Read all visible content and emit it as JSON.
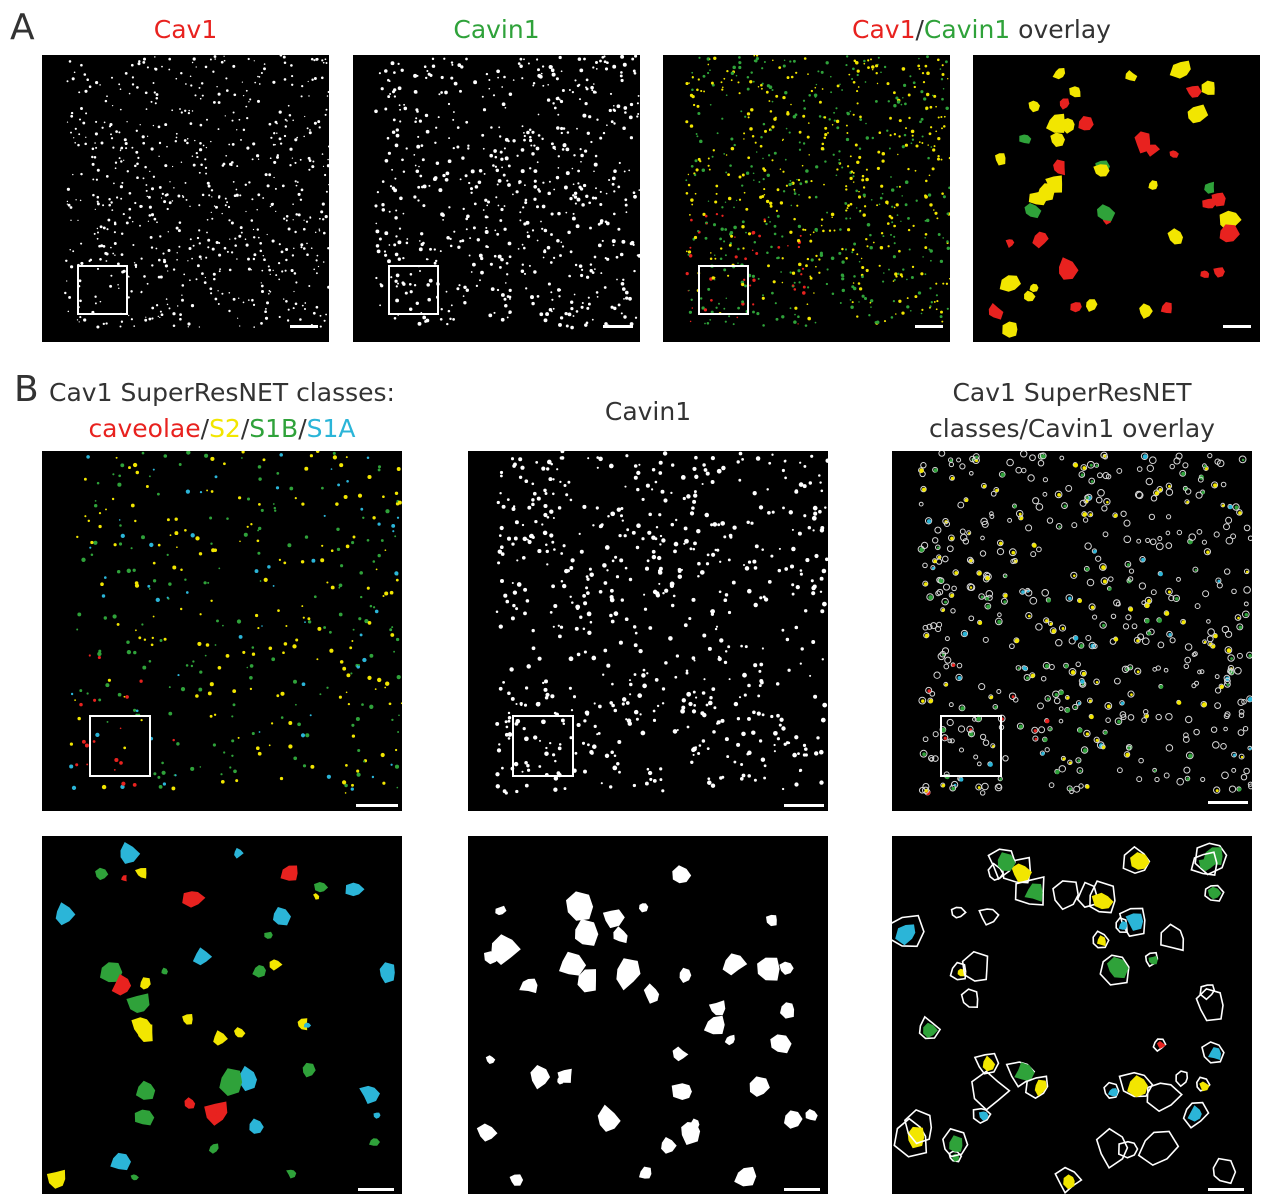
{
  "panel_a": {
    "label": "A",
    "title_cav1": "Cav1",
    "title_cavin1": "Cavin1",
    "overlay_title": {
      "part1": "Cav1",
      "sep": "/",
      "part2": "Cavin1",
      "part3": " overlay"
    }
  },
  "panel_b": {
    "label": "B",
    "title_classes_line1": "Cav1 SuperResNET classes:",
    "classes": {
      "caveolae": "caveolae",
      "s2": "S2",
      "s1b": "S1B",
      "s1a": "S1A",
      "sep": "/"
    },
    "title_cavin1": "Cavin1",
    "overlay_line1": "Cav1 SuperResNET",
    "overlay_line2": "classes/Cavin1 overlay"
  },
  "colors": {
    "caveolae": "#e8221f",
    "s2": "#f2e600",
    "s1b": "#2fa23a",
    "s1a": "#2bb5d8",
    "cavin1": "#ffffff",
    "background": "#000000",
    "text": "#333333"
  }
}
